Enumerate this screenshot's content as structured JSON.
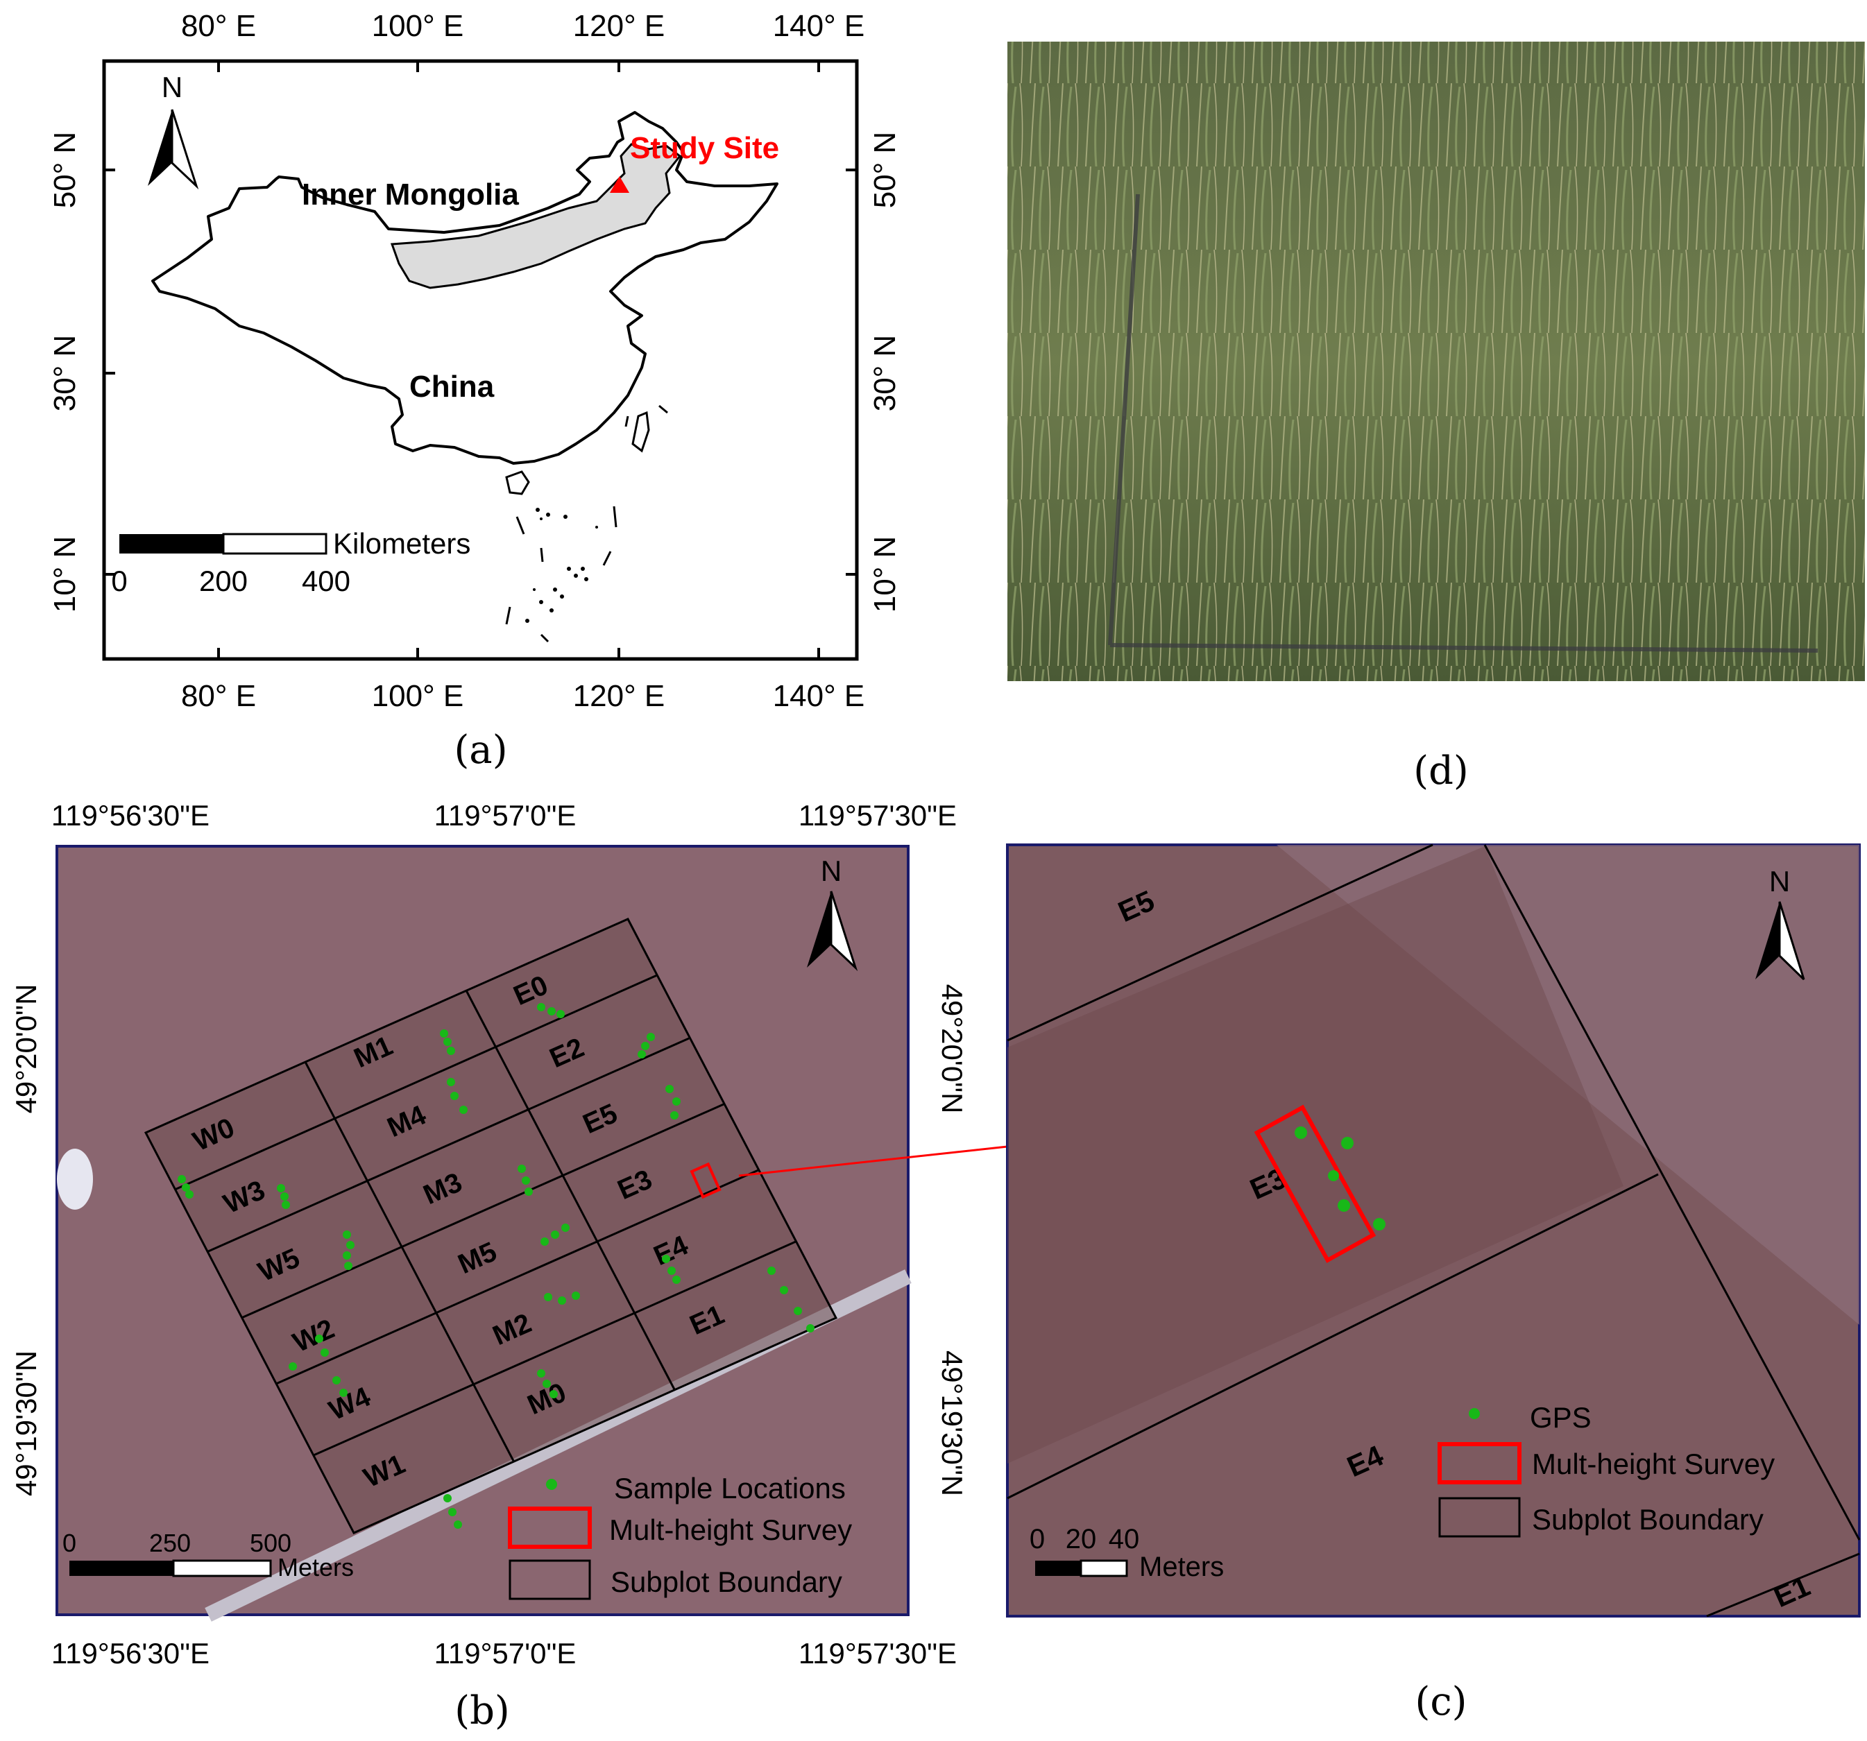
{
  "panel_a": {
    "caption": "(a)",
    "lon_labels": [
      "80° E",
      "100° E",
      "120° E",
      "140° E"
    ],
    "lat_labels": [
      "50° N",
      "30° N",
      "10° N"
    ],
    "north": "N",
    "site_label": "Study Site",
    "region_label": "Inner Mongolia",
    "country_label": "China",
    "scale_unit": "Kilometers",
    "scale_ticks": [
      "0",
      "200",
      "400"
    ],
    "colors": {
      "site": "#ff0000",
      "region_fill": "#dcdcdc"
    }
  },
  "panel_b": {
    "caption": "(b)",
    "lon_labels": [
      "119°56'30\"E",
      "119°57'0\"E",
      "119°57'30\"E"
    ],
    "lat_labels": [
      "49°20'0\"N",
      "49°19'30\"N"
    ],
    "north": "N",
    "plots": [
      "W0",
      "W3",
      "W5",
      "W2",
      "W4",
      "W1",
      "M1",
      "M4",
      "M3",
      "M5",
      "M2",
      "M0",
      "E0",
      "E2",
      "E5",
      "E3",
      "E4",
      "E1"
    ],
    "scale_unit": "Meters",
    "scale_ticks": [
      "0",
      "250",
      "500"
    ],
    "legend": [
      "Sample Locations",
      "Mult-height Survey",
      "Subplot Boundary"
    ],
    "colors": {
      "points": "#18b818",
      "survey": "#ff0000",
      "background": "#8a6670"
    }
  },
  "panel_c": {
    "caption": "(c)",
    "north": "N",
    "plots": [
      "E5",
      "E3",
      "E4",
      "E1"
    ],
    "scale_unit": "Meters",
    "scale_ticks": [
      "0",
      "20",
      "40"
    ],
    "legend": [
      "GPS",
      "Mult-height Survey",
      "Subplot Boundary"
    ]
  },
  "panel_d": {
    "caption": "(d)",
    "photo": "grass-quadrat-photo"
  }
}
